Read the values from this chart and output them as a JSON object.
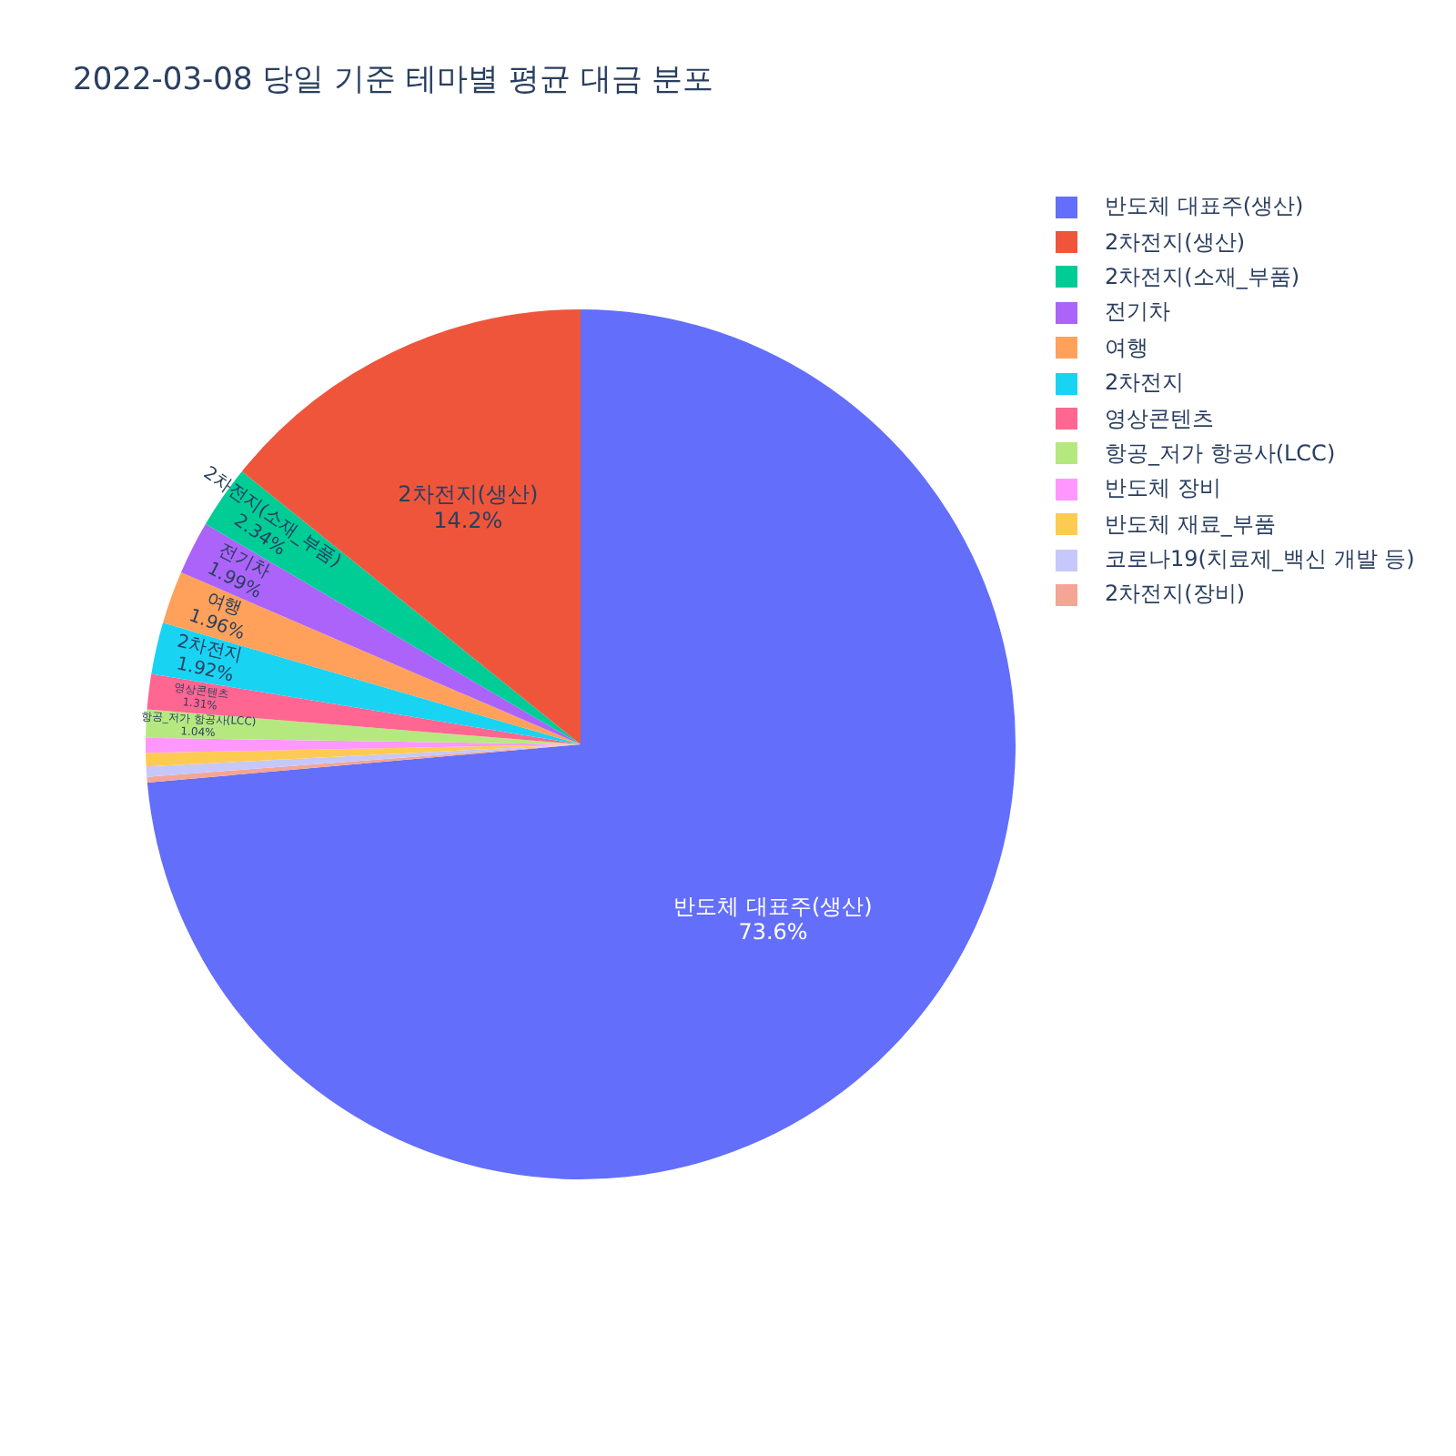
{
  "chart_data": {
    "type": "pie",
    "title": "2022-03-08 당일 기준 테마별 평균 대금 분포",
    "categories": [
      "반도체 대표주(생산)",
      "2차전지(생산)",
      "2차전지(소재_부품)",
      "전기차",
      "여행",
      "2차전지",
      "영상콘텐츠",
      "항공_저가 항공사(LCC)",
      "반도체 장비",
      "반도체 재료_부품",
      "코로나19(치료제_백신 개발 등)",
      "2차전지(장비)"
    ],
    "values": [
      73.6,
      14.2,
      2.34,
      1.99,
      1.96,
      1.92,
      1.31,
      1.04,
      0.55,
      0.5,
      0.38,
      0.21
    ],
    "colors": [
      "#636efa",
      "#ef553b",
      "#00cc96",
      "#ab63fa",
      "#ffa15a",
      "#19d3f3",
      "#ff6692",
      "#b6e880",
      "#ff97ff",
      "#fecb52",
      "#c6c8fb",
      "#f4a595"
    ],
    "value_labels": [
      "73.6%",
      "14.2%",
      "2.34%",
      "1.99%",
      "1.96%",
      "1.92%",
      "1.31%",
      "1.04%",
      null,
      null,
      null,
      null
    ],
    "legend": "top right"
  }
}
